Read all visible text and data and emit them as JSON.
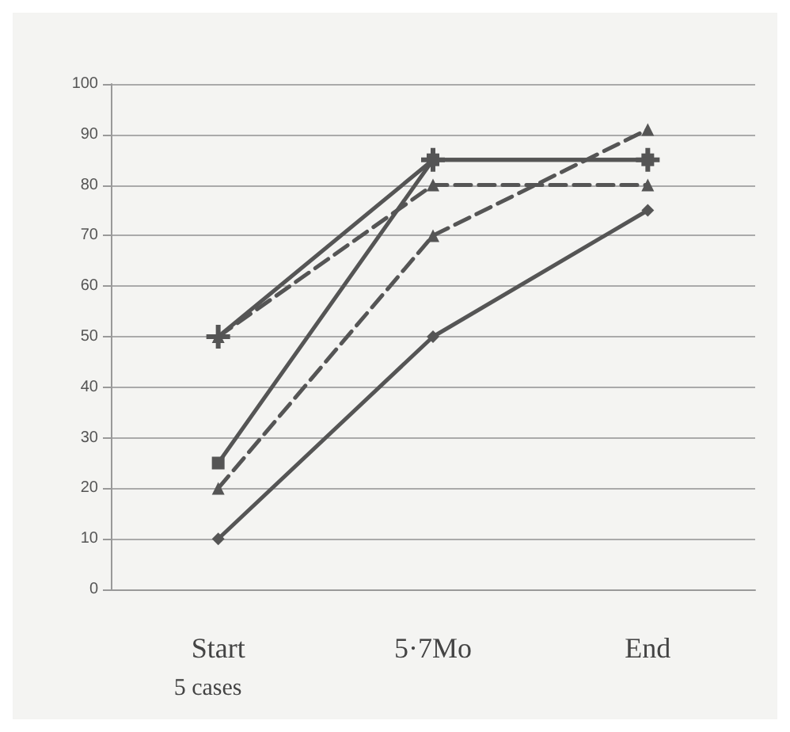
{
  "chart_data": {
    "type": "line",
    "categories": [
      "Start",
      "5·7Mo",
      "End"
    ],
    "series": [
      {
        "color": "#555555",
        "marker": "square",
        "line_style": "solid",
        "values": [
          25,
          85,
          85
        ]
      },
      {
        "color": "#555555",
        "marker": "cross",
        "line_style": "solid",
        "values": [
          50,
          85,
          85
        ]
      },
      {
        "color": "#555555",
        "marker": "triangle",
        "line_style": "dashed",
        "values": [
          50,
          80,
          80
        ]
      },
      {
        "color": "#555555",
        "marker": "triangle",
        "line_style": "dashed",
        "values": [
          20,
          70,
          91
        ]
      },
      {
        "color": "#555555",
        "marker": "diamond",
        "line_style": "solid",
        "values": [
          10,
          50,
          75
        ]
      }
    ],
    "ylim": [
      0,
      100
    ],
    "yticks": [
      0,
      10,
      20,
      30,
      40,
      50,
      60,
      70,
      80,
      90,
      100
    ],
    "grid": "y",
    "annotations": [
      "5 cases"
    ]
  }
}
